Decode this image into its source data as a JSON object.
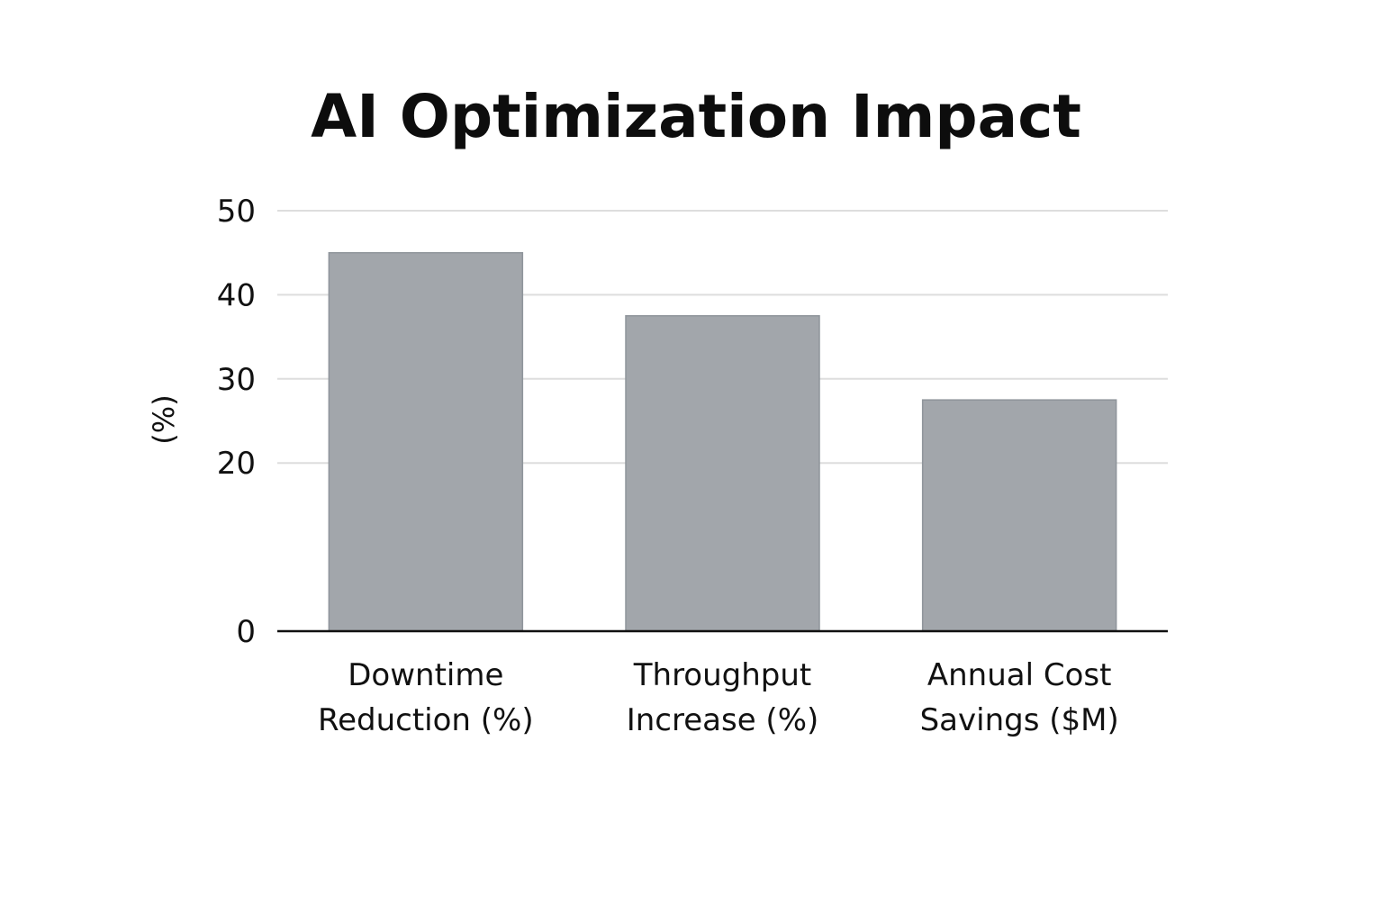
{
  "colors": {
    "bar_fill": "#a2a6ab",
    "gridline": "#dddddd",
    "axis": "#111111"
  },
  "chart_data": {
    "type": "bar",
    "title": "AI Optimization Impact",
    "xlabel": "",
    "ylabel": "(%)",
    "categories": [
      [
        "Downtime",
        "Reduction (%)"
      ],
      [
        "Throughput",
        "Increase (%)"
      ],
      [
        "Annual Cost",
        "Savings ($M)"
      ]
    ],
    "values": [
      45,
      37.5,
      27.5
    ],
    "ylim": [
      0,
      50
    ],
    "yticks": [
      0,
      20,
      30,
      40,
      50
    ],
    "ytick_labels": [
      "0",
      "20",
      "30",
      "40",
      "50"
    ],
    "grid": true,
    "legend": "none"
  }
}
